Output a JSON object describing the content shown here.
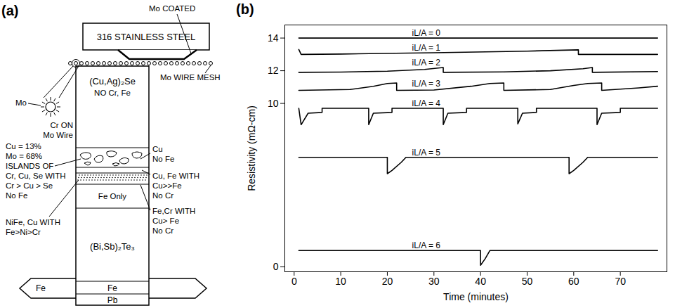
{
  "panel_a": {
    "label": "(a)",
    "plate": "316 STAINLESS STEEL",
    "coating": "Mo COATED",
    "mesh": "Mo WIRE MESH",
    "wire": {
      "name": "Mo",
      "coating": [
        "Cr ON",
        "Mo Wire"
      ],
      "composition": [
        "Cu = 13%",
        "Mo = 68%"
      ]
    },
    "layers": {
      "top": [
        "(Cu,Ag)₂Se",
        "NO Cr, Fe"
      ],
      "middle": "Fe Only",
      "bottom": "(Bi,Sb)₂Te₃"
    },
    "notes_left": [
      [
        "ISLANDS OF",
        "Cr, Cu, Se WITH",
        "Cr > Cu > Se",
        "No Fe"
      ],
      [
        "NiFe, Cu WITH",
        "Fe>Ni>Cr"
      ]
    ],
    "notes_right": [
      [
        "Cu",
        "No Fe"
      ],
      [
        "Cu, Fe WITH",
        "Cu>>Fe",
        "No Cr"
      ],
      [
        "Fe,Cr WITH",
        "Cu> Fe",
        "No Cr"
      ]
    ],
    "electrode": {
      "side": "Fe",
      "layers": [
        "Fe",
        "Pb"
      ]
    }
  },
  "chart_data": {
    "type": "line",
    "panel_label": "(b)",
    "x_label": "Time (minutes)",
    "y_label": "Resistivity (mΩ-cm)",
    "xlim": [
      -2,
      80
    ],
    "xticks": [
      0,
      10,
      20,
      30,
      40,
      50,
      60,
      70
    ],
    "ylim": [
      -0.3,
      14.8
    ],
    "yticks": [
      0,
      10,
      12,
      14
    ],
    "color": "#000000",
    "series": [
      {
        "name": "iL/A = 0",
        "x": [
          1,
          78
        ],
        "values": [
          14.0,
          14.0
        ]
      },
      {
        "name": "iL/A = 1",
        "x": [
          1,
          1.5,
          10,
          30,
          50,
          61,
          61,
          78
        ],
        "values": [
          13.3,
          13.0,
          13.02,
          13.1,
          13.2,
          13.28,
          13.0,
          13.0
        ]
      },
      {
        "name": "iL/A = 2",
        "x": [
          1,
          10,
          20,
          28,
          32,
          32,
          45,
          55,
          62,
          64,
          64,
          78
        ],
        "values": [
          11.9,
          11.92,
          11.97,
          12.08,
          12.2,
          11.9,
          11.93,
          12.0,
          12.12,
          12.2,
          11.9,
          11.95
        ]
      },
      {
        "name": "iL/A = 3",
        "x": [
          1,
          12,
          17,
          20,
          22,
          22,
          30,
          38,
          42,
          45,
          45,
          55,
          60,
          63,
          66,
          66,
          74,
          78
        ],
        "values": [
          10.8,
          10.85,
          11.05,
          11.22,
          11.25,
          10.8,
          10.82,
          11.05,
          11.22,
          11.25,
          10.8,
          10.85,
          11.1,
          11.22,
          11.25,
          10.8,
          10.95,
          11.05
        ]
      },
      {
        "name": "iL/A = 4",
        "x": [
          1,
          1.5,
          3,
          6,
          6,
          16,
          16,
          17,
          21,
          21,
          32,
          32,
          33,
          37,
          37,
          48,
          48,
          49,
          52,
          52,
          65,
          65,
          66,
          70,
          70,
          78
        ],
        "values": [
          9.7,
          8.7,
          9.4,
          9.45,
          9.7,
          9.7,
          8.7,
          9.4,
          9.45,
          9.7,
          9.7,
          8.7,
          9.4,
          9.45,
          9.7,
          9.7,
          8.75,
          9.4,
          9.45,
          9.7,
          9.7,
          8.7,
          9.4,
          9.45,
          9.7,
          9.7
        ]
      },
      {
        "name": "iL/A = 5",
        "x": [
          1,
          20,
          20,
          21,
          23,
          24,
          59,
          59,
          60,
          62,
          63,
          78
        ],
        "values": [
          6.7,
          6.7,
          5.7,
          5.9,
          6.4,
          6.7,
          6.7,
          5.7,
          5.9,
          6.4,
          6.7,
          6.7
        ]
      },
      {
        "name": "iL/A = 6",
        "x": [
          1,
          40,
          40,
          41,
          42,
          78
        ],
        "values": [
          1.0,
          1.0,
          0.1,
          0.5,
          1.0,
          1.0
        ]
      }
    ]
  }
}
